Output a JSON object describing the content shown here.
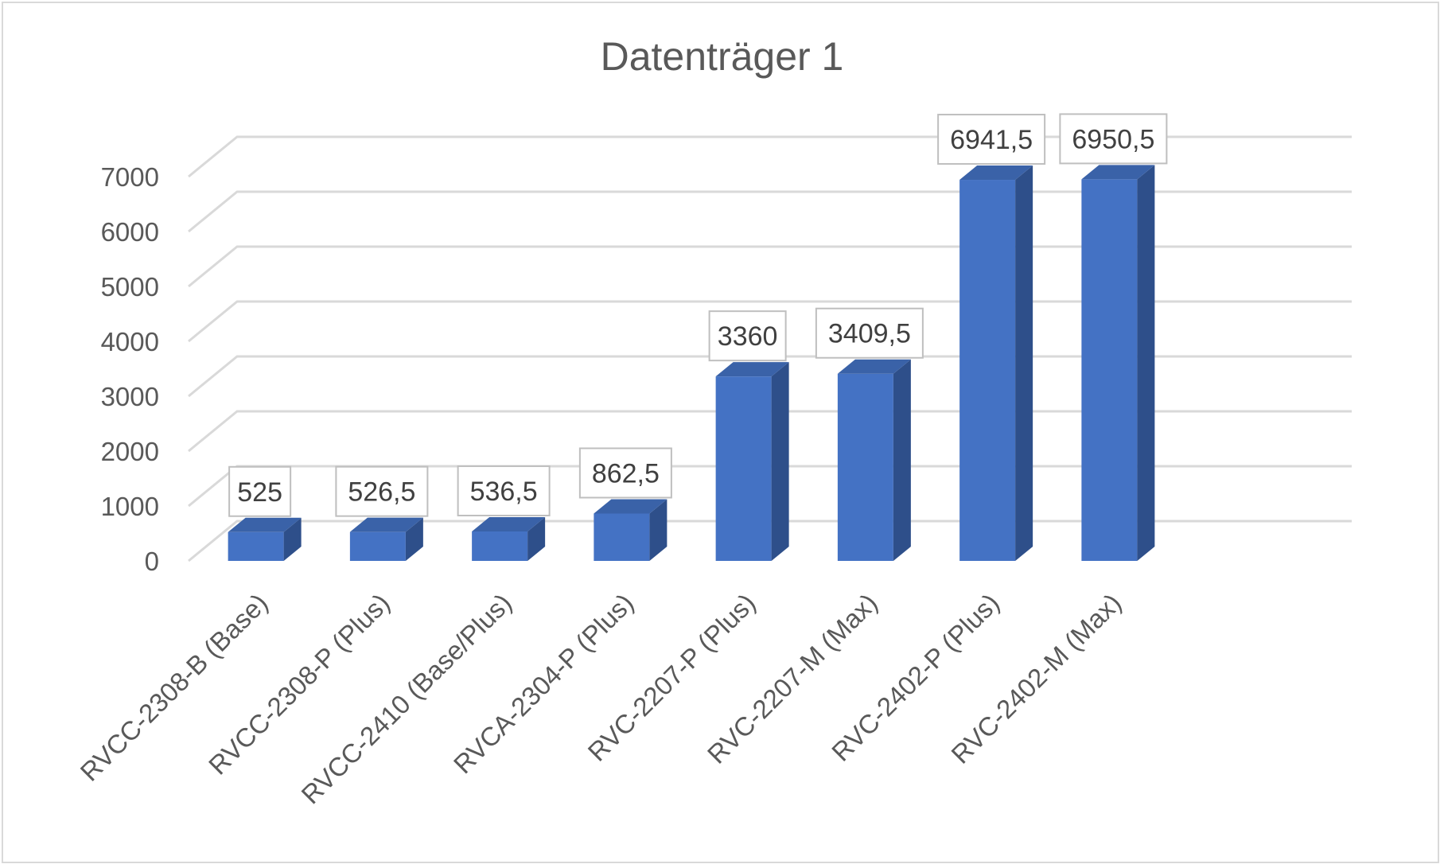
{
  "chart_data": {
    "type": "bar",
    "title": "Datenträger 1",
    "categories": [
      "RVCC-2308-B (Base)",
      "RVCC-2308-P (Plus)",
      "RVCC-2410 (Base/Plus)",
      "RVCA-2304-P (Plus)",
      "RVC-2207-P (Plus)",
      "RVC-2207-M (Max)",
      "RVC-2402-P (Plus)",
      "RVC-2402-M (Max)"
    ],
    "values": [
      525,
      526.5,
      536.5,
      862.5,
      3360,
      3409.5,
      6941.5,
      6950.5
    ],
    "data_labels": [
      "525",
      "526,5",
      "536,5",
      "862,5",
      "3360",
      "3409,5",
      "6941,5",
      "6950,5"
    ],
    "ylim": [
      0,
      7000
    ],
    "yticks": [
      "0",
      "1000",
      "2000",
      "3000",
      "4000",
      "5000",
      "6000",
      "7000"
    ],
    "xlabel": "",
    "ylabel": "",
    "grid": true,
    "style": "3d-column",
    "colors": {
      "bar_front": "#4472c4",
      "bar_side": "#2e4f8a",
      "bar_top": "#3a62a8",
      "grid": "#d9d9d9"
    }
  }
}
